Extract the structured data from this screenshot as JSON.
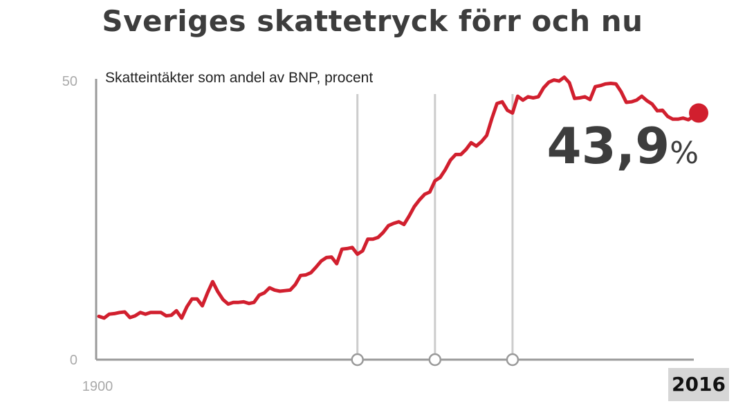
{
  "title": "Sveriges skattetryck förr och nu",
  "colors": {
    "line": "#d11f2e",
    "axis": "#9a9a9a",
    "marker_line": "#cccccc",
    "text": "#3d3d3d"
  },
  "chart_data": {
    "type": "line",
    "title": "Sveriges skattetryck förr och nu",
    "subtitle": "Skatteintäkter som andel av BNP, procent",
    "xlabel": "",
    "ylabel": "",
    "xlim": [
      1900,
      2016
    ],
    "ylim": [
      0,
      50
    ],
    "y_ticks": [
      "50",
      "0"
    ],
    "x_tick_labels": [
      "1900",
      "2016"
    ],
    "grid": false,
    "highlight_years": [
      1950,
      1965,
      1980
    ],
    "end_label": "43,9",
    "end_unit": "%",
    "series": [
      {
        "points": [
          [
            1900,
            7.6
          ],
          [
            1901,
            7.3
          ],
          [
            1902,
            8.0
          ],
          [
            1903,
            8.1
          ],
          [
            1904,
            8.3
          ],
          [
            1905,
            8.4
          ],
          [
            1906,
            7.4
          ],
          [
            1907,
            7.7
          ],
          [
            1908,
            8.3
          ],
          [
            1909,
            8.0
          ],
          [
            1910,
            8.3
          ],
          [
            1911,
            8.3
          ],
          [
            1912,
            8.3
          ],
          [
            1913,
            7.7
          ],
          [
            1914,
            7.8
          ],
          [
            1915,
            8.6
          ],
          [
            1916,
            7.3
          ],
          [
            1917,
            9.3
          ],
          [
            1918,
            10.7
          ],
          [
            1919,
            10.7
          ],
          [
            1920,
            9.5
          ],
          [
            1921,
            11.8
          ],
          [
            1922,
            13.8
          ],
          [
            1923,
            12.0
          ],
          [
            1924,
            10.6
          ],
          [
            1925,
            9.8
          ],
          [
            1926,
            10.1
          ],
          [
            1927,
            10.1
          ],
          [
            1928,
            10.2
          ],
          [
            1929,
            9.9
          ],
          [
            1930,
            10.1
          ],
          [
            1931,
            11.4
          ],
          [
            1932,
            11.8
          ],
          [
            1933,
            12.7
          ],
          [
            1934,
            12.3
          ],
          [
            1935,
            12.1
          ],
          [
            1936,
            12.2
          ],
          [
            1937,
            12.3
          ],
          [
            1938,
            13.3
          ],
          [
            1939,
            14.9
          ],
          [
            1940,
            15.0
          ],
          [
            1941,
            15.4
          ],
          [
            1942,
            16.4
          ],
          [
            1943,
            17.5
          ],
          [
            1944,
            18.1
          ],
          [
            1945,
            18.2
          ],
          [
            1946,
            17.0
          ],
          [
            1947,
            19.6
          ],
          [
            1948,
            19.7
          ],
          [
            1949,
            19.9
          ],
          [
            1950,
            18.7
          ],
          [
            1951,
            19.3
          ],
          [
            1952,
            21.4
          ],
          [
            1953,
            21.4
          ],
          [
            1954,
            21.7
          ],
          [
            1955,
            22.6
          ],
          [
            1956,
            23.8
          ],
          [
            1957,
            24.2
          ],
          [
            1958,
            24.5
          ],
          [
            1959,
            24.0
          ],
          [
            1960,
            25.5
          ],
          [
            1961,
            27.2
          ],
          [
            1962,
            28.4
          ],
          [
            1963,
            29.4
          ],
          [
            1964,
            29.8
          ],
          [
            1965,
            31.8
          ],
          [
            1966,
            32.4
          ],
          [
            1967,
            33.8
          ],
          [
            1968,
            35.5
          ],
          [
            1969,
            36.5
          ],
          [
            1970,
            36.5
          ],
          [
            1971,
            37.4
          ],
          [
            1972,
            38.6
          ],
          [
            1973,
            38.0
          ],
          [
            1974,
            38.8
          ],
          [
            1975,
            39.9
          ],
          [
            1976,
            42.9
          ],
          [
            1977,
            45.6
          ],
          [
            1978,
            45.9
          ],
          [
            1979,
            44.4
          ],
          [
            1980,
            43.9
          ],
          [
            1981,
            46.9
          ],
          [
            1982,
            46.2
          ],
          [
            1983,
            46.8
          ],
          [
            1984,
            46.6
          ],
          [
            1985,
            46.8
          ],
          [
            1986,
            48.4
          ],
          [
            1987,
            49.4
          ],
          [
            1988,
            49.8
          ],
          [
            1989,
            49.6
          ],
          [
            1990,
            50.3
          ],
          [
            1991,
            49.3
          ],
          [
            1992,
            46.5
          ],
          [
            1993,
            46.6
          ],
          [
            1994,
            46.8
          ],
          [
            1995,
            46.3
          ],
          [
            1996,
            48.6
          ],
          [
            1997,
            48.8
          ],
          [
            1998,
            49.1
          ],
          [
            1999,
            49.2
          ],
          [
            2000,
            49.1
          ],
          [
            2001,
            47.7
          ],
          [
            2002,
            45.8
          ],
          [
            2003,
            45.9
          ],
          [
            2004,
            46.2
          ],
          [
            2005,
            46.9
          ],
          [
            2006,
            46.1
          ],
          [
            2007,
            45.5
          ],
          [
            2008,
            44.3
          ],
          [
            2009,
            44.4
          ],
          [
            2010,
            43.3
          ],
          [
            2011,
            42.8
          ],
          [
            2012,
            42.8
          ],
          [
            2013,
            43.0
          ],
          [
            2014,
            42.7
          ],
          [
            2015,
            43.3
          ],
          [
            2016,
            43.9
          ]
        ]
      }
    ]
  }
}
